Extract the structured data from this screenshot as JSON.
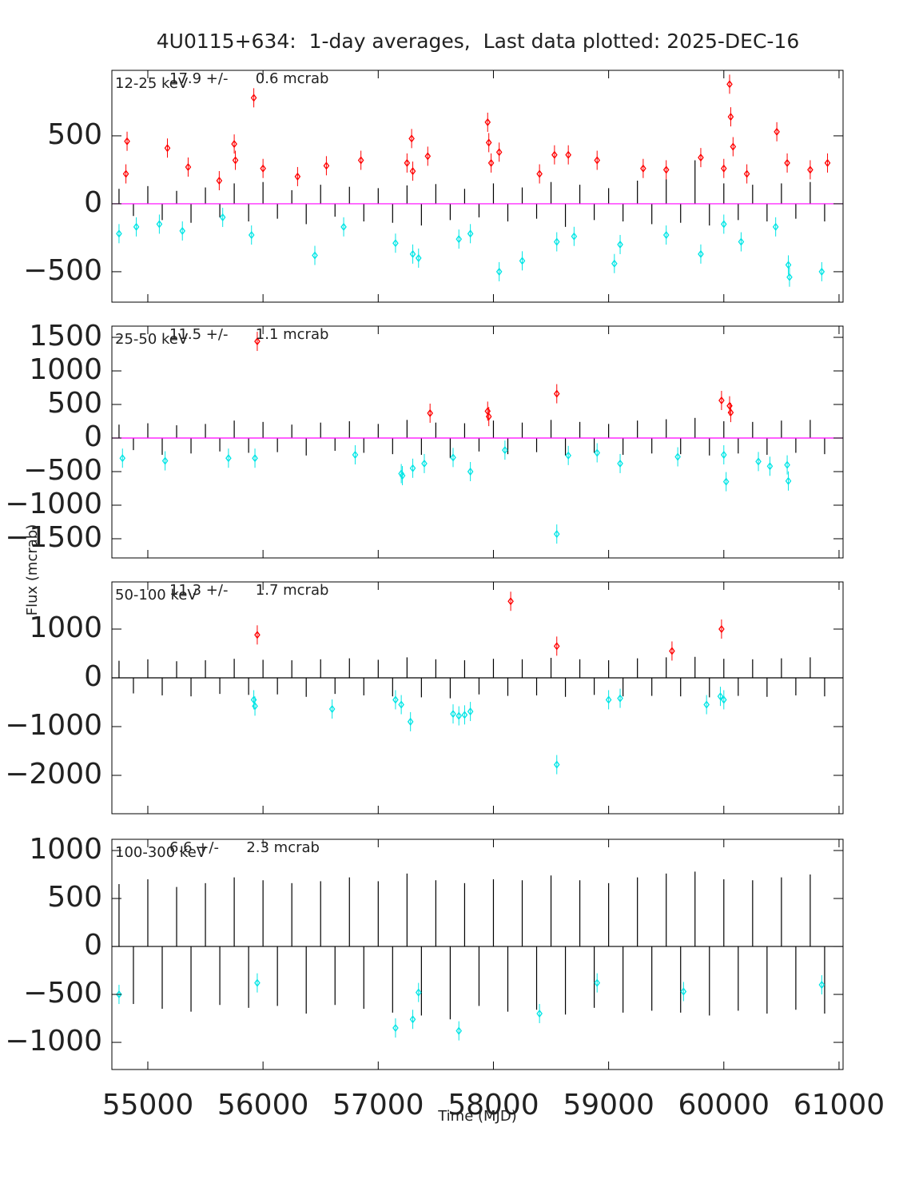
{
  "chart_data": [
    {
      "type": "scatter",
      "title": "4U0115+634:  1-day averages,  Last data plotted: 2025-DEC-16",
      "label": "12-25 keV",
      "stat": "17.9 +/-      0.6 mcrab",
      "zero_line_color": "#ff00ff",
      "xlim": [
        54688,
        61035
      ],
      "xticks": [
        55000,
        56000,
        57000,
        58000,
        59000,
        60000,
        61000
      ],
      "ylim": [
        -724,
        982
      ],
      "yticks": [
        {
          "value": -500,
          "label": "−500"
        },
        0,
        500
      ],
      "series": [
        {
          "color": "#000000",
          "x": [
            54750,
            54875,
            55000,
            55125,
            55250,
            55375,
            55500,
            55625,
            55750,
            55875,
            56000,
            56125,
            56250,
            56375,
            56500,
            56625,
            56750,
            56875,
            57000,
            57125,
            57250,
            57375,
            57500,
            57625,
            57750,
            57875,
            58000,
            58125,
            58250,
            58375,
            58500,
            58625,
            58750,
            58875,
            59000,
            59125,
            59250,
            59375,
            59500,
            59625,
            59750,
            59875,
            60000,
            60125,
            60250,
            60375,
            60500,
            60625,
            60750,
            60875
          ],
          "values": [
            110,
            -90,
            130,
            -120,
            95,
            -140,
            120,
            -100,
            150,
            -130,
            160,
            -110,
            100,
            -150,
            140,
            -95,
            125,
            -130,
            115,
            -140,
            135,
            -160,
            145,
            -120,
            110,
            -100,
            150,
            -130,
            120,
            -110,
            160,
            -170,
            140,
            -120,
            115,
            -130,
            170,
            -150,
            180,
            -140,
            320,
            -160,
            150,
            -120,
            140,
            -130,
            150,
            -110,
            160,
            -130
          ]
        },
        {
          "color": "#ff0000",
          "x": [
            54820,
            54810,
            55170,
            55350,
            55620,
            55750,
            55760,
            55920,
            56000,
            56300,
            56550,
            56850,
            57250,
            57290,
            57300,
            57430,
            57950,
            57960,
            57980,
            58050,
            58400,
            58530,
            58650,
            58900,
            59300,
            59500,
            59800,
            60000,
            60050,
            60060,
            60080,
            60200,
            60460,
            60550,
            60750,
            60900
          ],
          "values": [
            460,
            220,
            410,
            270,
            170,
            440,
            320,
            780,
            260,
            200,
            280,
            320,
            300,
            480,
            240,
            350,
            600,
            450,
            300,
            380,
            220,
            360,
            360,
            320,
            260,
            250,
            340,
            260,
            880,
            640,
            420,
            220,
            530,
            300,
            250,
            300
          ]
        },
        {
          "color": "#00e5e5",
          "x": [
            54750,
            54900,
            55100,
            55300,
            55650,
            55900,
            56450,
            56700,
            57150,
            57300,
            57350,
            57700,
            57800,
            58050,
            58250,
            58550,
            58700,
            59050,
            59100,
            59500,
            59800,
            60000,
            60150,
            60450,
            60560,
            60570,
            60850
          ],
          "values": [
            -220,
            -170,
            -150,
            -200,
            -100,
            -230,
            -380,
            -170,
            -290,
            -370,
            -400,
            -260,
            -220,
            -500,
            -420,
            -280,
            -240,
            -440,
            -300,
            -230,
            -370,
            -150,
            -280,
            -170,
            -450,
            -540,
            -500
          ]
        }
      ]
    },
    {
      "type": "scatter",
      "label": "25-50 keV",
      "stat": "11.5 +/-      1.1 mcrab",
      "ylabel": "Flux (mcrab)",
      "zero_line_color": "#ff00ff",
      "xlim": [
        54688,
        61035
      ],
      "xticks": [
        55000,
        56000,
        57000,
        58000,
        59000,
        60000,
        61000
      ],
      "ylim": [
        -1786,
        1667
      ],
      "yticks": [
        {
          "value": -1500,
          "label": "−1500"
        },
        {
          "value": -1000,
          "label": "−1000"
        },
        {
          "value": -500,
          "label": "−500"
        },
        0,
        500,
        1000,
        1500
      ],
      "series": [
        {
          "color": "#000000",
          "x": [
            54750,
            54875,
            55000,
            55125,
            55250,
            55375,
            55500,
            55625,
            55750,
            55875,
            56000,
            56125,
            56250,
            56375,
            56500,
            56625,
            56750,
            56875,
            57000,
            57125,
            57250,
            57375,
            57500,
            57625,
            57750,
            57875,
            58000,
            58125,
            58250,
            58375,
            58500,
            58625,
            58750,
            58875,
            59000,
            59125,
            59250,
            59375,
            59500,
            59625,
            59750,
            59875,
            60000,
            60125,
            60250,
            60375,
            60500,
            60625,
            60750,
            60875
          ],
          "values": [
            200,
            -180,
            220,
            -250,
            190,
            -230,
            210,
            -200,
            260,
            -220,
            240,
            -210,
            200,
            -260,
            230,
            -190,
            250,
            -220,
            210,
            -240,
            270,
            -250,
            230,
            -300,
            220,
            -200,
            260,
            -240,
            230,
            -210,
            270,
            -260,
            240,
            -220,
            210,
            -250,
            260,
            -230,
            280,
            -240,
            300,
            -260,
            250,
            -230,
            240,
            -250,
            260,
            -220,
            270,
            -240
          ]
        },
        {
          "color": "#ff0000",
          "x": [
            55950,
            57450,
            57950,
            57960,
            58550,
            59980,
            60050,
            60060
          ],
          "values": [
            1440,
            370,
            400,
            320,
            660,
            560,
            480,
            380
          ]
        },
        {
          "color": "#00e5e5",
          "x": [
            54780,
            55150,
            55700,
            55930,
            56800,
            57200,
            57210,
            57300,
            57400,
            57650,
            57800,
            58100,
            58550,
            58650,
            58900,
            59100,
            59600,
            60000,
            60020,
            60300,
            60400,
            60550,
            60560
          ],
          "values": [
            -300,
            -340,
            -300,
            -300,
            -250,
            -530,
            -560,
            -450,
            -380,
            -290,
            -500,
            -180,
            -1430,
            -260,
            -220,
            -380,
            -280,
            -250,
            -650,
            -350,
            -420,
            -400,
            -640
          ]
        }
      ]
    },
    {
      "type": "scatter",
      "label": "50-100 keV",
      "stat": "11.3 +/-      1.7 mcrab",
      "zero_line_color": "#000000",
      "xlim": [
        54688,
        61035
      ],
      "xticks": [
        55000,
        56000,
        57000,
        58000,
        59000,
        60000,
        61000
      ],
      "ylim": [
        -2787,
        1967
      ],
      "yticks": [
        {
          "value": -2000,
          "label": "−2000"
        },
        {
          "value": -1000,
          "label": "−1000"
        },
        0,
        1000
      ],
      "series": [
        {
          "color": "#000000",
          "x": [
            54750,
            54875,
            55000,
            55125,
            55250,
            55375,
            55500,
            55625,
            55750,
            55875,
            56000,
            56125,
            56250,
            56375,
            56500,
            56625,
            56750,
            56875,
            57000,
            57125,
            57250,
            57375,
            57500,
            57625,
            57750,
            57875,
            58000,
            58125,
            58250,
            58375,
            58500,
            58625,
            58750,
            58875,
            59000,
            59125,
            59250,
            59375,
            59500,
            59625,
            59750,
            59875,
            60000,
            60125,
            60250,
            60375,
            60500,
            60625,
            60750,
            60875
          ],
          "values": [
            350,
            -320,
            380,
            -360,
            340,
            -380,
            360,
            -330,
            390,
            -350,
            370,
            -340,
            360,
            -390,
            380,
            -330,
            400,
            -360,
            370,
            -380,
            420,
            -400,
            380,
            -420,
            360,
            -340,
            390,
            -370,
            380,
            -360,
            410,
            -390,
            380,
            -350,
            360,
            -380,
            400,
            -370,
            420,
            -380,
            430,
            -400,
            390,
            -370,
            380,
            -390,
            400,
            -360,
            420,
            -380
          ]
        },
        {
          "color": "#ff0000",
          "x": [
            55950,
            58150,
            58550,
            59550,
            59980
          ],
          "values": [
            880,
            1570,
            650,
            550,
            1000
          ]
        },
        {
          "color": "#00e5e5",
          "x": [
            55920,
            55930,
            56600,
            57150,
            57200,
            57280,
            57650,
            57700,
            57750,
            57800,
            59000,
            59100,
            59850,
            59970,
            60000,
            58550
          ],
          "values": [
            -450,
            -580,
            -640,
            -450,
            -550,
            -900,
            -740,
            -780,
            -760,
            -690,
            -450,
            -420,
            -550,
            -380,
            -450,
            -1780
          ]
        }
      ]
    },
    {
      "type": "scatter",
      "label": "100-300 keV",
      "stat": "6.6 +/-      2.3 mcrab",
      "xlabel": "Time (MJD)",
      "zero_line_color": "#000000",
      "xlim": [
        54688,
        61035
      ],
      "xticks": [
        55000,
        56000,
        57000,
        58000,
        59000,
        60000,
        61000
      ],
      "ylim": [
        -1283,
        1117
      ],
      "yticks": [
        {
          "value": -1000,
          "label": "−1000"
        },
        {
          "value": -500,
          "label": "−500"
        },
        0,
        500,
        1000
      ],
      "series": [
        {
          "color": "#000000",
          "x": [
            54750,
            54875,
            55000,
            55125,
            55250,
            55375,
            55500,
            55625,
            55750,
            55875,
            56000,
            56125,
            56250,
            56375,
            56500,
            56625,
            56750,
            56875,
            57000,
            57125,
            57250,
            57375,
            57500,
            57625,
            57750,
            57875,
            58000,
            58125,
            58250,
            58375,
            58500,
            58625,
            58750,
            58875,
            59000,
            59125,
            59250,
            59375,
            59500,
            59625,
            59750,
            59875,
            60000,
            60125,
            60250,
            60375,
            60500,
            60625,
            60750,
            60875
          ],
          "values": [
            650,
            -600,
            700,
            -650,
            620,
            -680,
            660,
            -610,
            720,
            -640,
            690,
            -620,
            660,
            -700,
            680,
            -610,
            720,
            -650,
            680,
            -690,
            760,
            -720,
            690,
            -760,
            660,
            -620,
            700,
            -680,
            690,
            -660,
            740,
            -710,
            690,
            -640,
            660,
            -690,
            720,
            -670,
            760,
            -690,
            780,
            -720,
            700,
            -670,
            690,
            -700,
            720,
            -660,
            750,
            -700
          ]
        },
        {
          "color": "#00e5e5",
          "x": [
            54750,
            55950,
            57150,
            57300,
            57350,
            57700,
            58400,
            58900,
            59650,
            60850
          ],
          "values": [
            -500,
            -380,
            -850,
            -760,
            -480,
            -880,
            -700,
            -380,
            -470,
            -400
          ]
        }
      ]
    }
  ]
}
